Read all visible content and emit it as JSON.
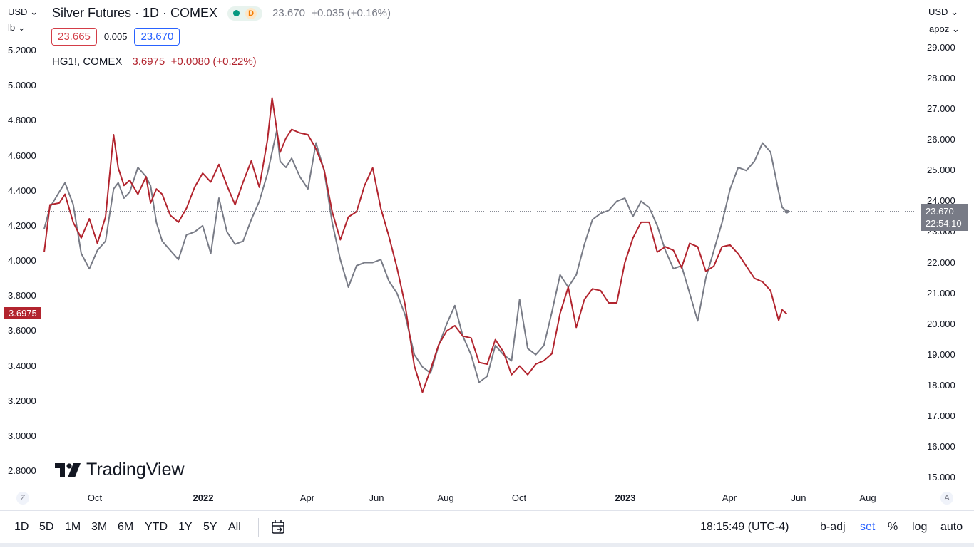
{
  "header": {
    "title": "Silver Futures · 1D · COMEX",
    "badge_letter": "D",
    "quote": "23.670  +0.035 (+0.16%)",
    "bid": "23.665",
    "spread": "0.005",
    "ask": "23.670",
    "compare_symbol": "HG1!, COMEX",
    "compare_quote": "3.6975  +0.0080 (+0.22%)"
  },
  "left_axis": {
    "currency": "USD",
    "unit": "lb",
    "ticks": [
      "5.2000",
      "5.0000",
      "4.8000",
      "4.6000",
      "4.4000",
      "4.2000",
      "4.0000",
      "3.8000",
      "3.6000",
      "3.4000",
      "3.2000",
      "3.0000",
      "2.8000"
    ],
    "current_label": "3.6975"
  },
  "right_axis": {
    "currency": "USD",
    "unit": "apoz",
    "ticks": [
      "29.000",
      "28.000",
      "27.000",
      "26.000",
      "25.000",
      "24.000",
      "23.000",
      "22.000",
      "21.000",
      "20.000",
      "19.000",
      "18.000",
      "17.000",
      "16.000",
      "15.000"
    ],
    "current_price": "23.670",
    "countdown": "22:54:10"
  },
  "x_axis": {
    "labels": [
      "Oct",
      "2022",
      "Apr",
      "Jun",
      "Aug",
      "Oct",
      "2023",
      "Apr",
      "Jun",
      "Aug"
    ],
    "bold": [
      false,
      true,
      false,
      false,
      false,
      false,
      true,
      false,
      false,
      false
    ]
  },
  "watermark": "TradingView",
  "bottom_bar": {
    "ranges": [
      "1D",
      "5D",
      "1M",
      "3M",
      "6M",
      "YTD",
      "1Y",
      "5Y",
      "All"
    ],
    "time": "18:15:49 (UTC-4)",
    "options": [
      "b-adj",
      "set",
      "%",
      "log",
      "auto"
    ],
    "active_option": "set",
    "axis_left_btn": "Z",
    "axis_right_btn": "A"
  },
  "colors": {
    "silver": "#787b86",
    "copper": "#b2242e",
    "accent": "#2962ff"
  },
  "chart_data": {
    "type": "line",
    "x_range": [
      "2021-08-19",
      "2023-09-15"
    ],
    "series": [
      {
        "name": "Silver Futures · 1D · COMEX",
        "axis": "right",
        "x": [
          "2021-08-19",
          "2021-08-24",
          "2021-09-01",
          "2021-09-06",
          "2021-09-13",
          "2021-09-20",
          "2021-09-27",
          "2021-10-04",
          "2021-10-11",
          "2021-10-18",
          "2021-10-22",
          "2021-10-27",
          "2021-11-01",
          "2021-11-08",
          "2021-11-15",
          "2021-11-19",
          "2021-11-24",
          "2021-11-29",
          "2021-12-06",
          "2021-12-13",
          "2021-12-20",
          "2021-12-27",
          "2022-01-03",
          "2022-01-10",
          "2022-01-17",
          "2022-01-24",
          "2022-01-31",
          "2022-02-07",
          "2022-02-14",
          "2022-02-21",
          "2022-02-28",
          "2022-03-04",
          "2022-03-08",
          "2022-03-11",
          "2022-03-16",
          "2022-03-21",
          "2022-03-28",
          "2022-04-04",
          "2022-04-11",
          "2022-04-18",
          "2022-04-25",
          "2022-05-02",
          "2022-05-09",
          "2022-05-16",
          "2022-05-23",
          "2022-05-30",
          "2022-06-06",
          "2022-06-13",
          "2022-06-20",
          "2022-06-27",
          "2022-07-05",
          "2022-07-12",
          "2022-07-19",
          "2022-07-26",
          "2022-08-02",
          "2022-08-09",
          "2022-08-16",
          "2022-08-23",
          "2022-08-30",
          "2022-09-06",
          "2022-09-13",
          "2022-09-20",
          "2022-09-27",
          "2022-10-04",
          "2022-10-11",
          "2022-10-18",
          "2022-10-25",
          "2022-11-01",
          "2022-11-08",
          "2022-11-15",
          "2022-11-22",
          "2022-11-29",
          "2022-12-06",
          "2022-12-13",
          "2022-12-20",
          "2022-12-27",
          "2023-01-03",
          "2023-01-10",
          "2023-01-17",
          "2023-01-24",
          "2023-01-31",
          "2023-02-07",
          "2023-02-14",
          "2023-02-21",
          "2023-02-28",
          "2023-03-07",
          "2023-03-14",
          "2023-03-21",
          "2023-03-28",
          "2023-04-04",
          "2023-04-11",
          "2023-04-18",
          "2023-04-25",
          "2023-05-02",
          "2023-05-09",
          "2023-05-16",
          "2023-05-19",
          "2023-05-23"
        ],
        "y": [
          23.1,
          23.8,
          24.3,
          24.6,
          23.9,
          22.3,
          21.8,
          22.4,
          22.7,
          24.4,
          24.6,
          24.1,
          24.3,
          25.1,
          24.8,
          24.5,
          23.3,
          22.7,
          22.4,
          22.1,
          22.9,
          23.0,
          23.2,
          22.3,
          24.1,
          23.0,
          22.6,
          22.7,
          23.4,
          24.0,
          24.9,
          25.6,
          26.3,
          25.3,
          25.1,
          25.4,
          24.8,
          24.4,
          25.9,
          25.0,
          23.3,
          22.1,
          21.2,
          21.9,
          22.0,
          22.0,
          22.1,
          21.4,
          21.0,
          20.3,
          19.0,
          18.6,
          18.4,
          19.3,
          20.0,
          20.6,
          19.6,
          19.0,
          18.1,
          18.3,
          19.3,
          19.0,
          18.8,
          20.8,
          19.2,
          19.0,
          19.3,
          20.4,
          21.6,
          21.2,
          21.6,
          22.6,
          23.4,
          23.6,
          23.7,
          24.0,
          24.1,
          23.5,
          24.0,
          23.8,
          23.2,
          22.4,
          21.8,
          21.9,
          21.0,
          20.1,
          21.5,
          22.4,
          23.3,
          24.4,
          25.1,
          25.0,
          25.3,
          25.9,
          25.6,
          24.3,
          23.8,
          23.67
        ]
      },
      {
        "name": "HG1!, COMEX",
        "axis": "left",
        "x": [
          "2021-08-19",
          "2021-08-24",
          "2021-09-01",
          "2021-09-06",
          "2021-09-13",
          "2021-09-20",
          "2021-09-27",
          "2021-10-04",
          "2021-10-11",
          "2021-10-18",
          "2021-10-22",
          "2021-10-27",
          "2021-11-01",
          "2021-11-08",
          "2021-11-15",
          "2021-11-19",
          "2021-11-24",
          "2021-11-29",
          "2021-12-06",
          "2021-12-13",
          "2021-12-20",
          "2021-12-27",
          "2022-01-03",
          "2022-01-10",
          "2022-01-17",
          "2022-01-24",
          "2022-01-31",
          "2022-02-07",
          "2022-02-14",
          "2022-02-21",
          "2022-02-28",
          "2022-03-04",
          "2022-03-08",
          "2022-03-11",
          "2022-03-16",
          "2022-03-21",
          "2022-03-28",
          "2022-04-04",
          "2022-04-11",
          "2022-04-18",
          "2022-04-25",
          "2022-05-02",
          "2022-05-09",
          "2022-05-16",
          "2022-05-23",
          "2022-05-30",
          "2022-06-06",
          "2022-06-13",
          "2022-06-20",
          "2022-06-27",
          "2022-07-05",
          "2022-07-12",
          "2022-07-19",
          "2022-07-26",
          "2022-08-02",
          "2022-08-09",
          "2022-08-16",
          "2022-08-23",
          "2022-08-30",
          "2022-09-06",
          "2022-09-13",
          "2022-09-20",
          "2022-09-27",
          "2022-10-04",
          "2022-10-11",
          "2022-10-18",
          "2022-10-25",
          "2022-11-01",
          "2022-11-08",
          "2022-11-15",
          "2022-11-22",
          "2022-11-29",
          "2022-12-06",
          "2022-12-13",
          "2022-12-20",
          "2022-12-27",
          "2023-01-03",
          "2023-01-10",
          "2023-01-17",
          "2023-01-24",
          "2023-01-31",
          "2023-02-07",
          "2023-02-14",
          "2023-02-21",
          "2023-02-28",
          "2023-03-07",
          "2023-03-14",
          "2023-03-21",
          "2023-03-28",
          "2023-04-04",
          "2023-04-11",
          "2023-04-18",
          "2023-04-25",
          "2023-05-02",
          "2023-05-09",
          "2023-05-16",
          "2023-05-19",
          "2023-05-23"
        ],
        "y": [
          4.05,
          4.32,
          4.33,
          4.38,
          4.22,
          4.13,
          4.24,
          4.1,
          4.25,
          4.72,
          4.53,
          4.43,
          4.46,
          4.38,
          4.48,
          4.33,
          4.41,
          4.38,
          4.26,
          4.22,
          4.3,
          4.42,
          4.5,
          4.45,
          4.55,
          4.43,
          4.32,
          4.45,
          4.57,
          4.42,
          4.69,
          4.93,
          4.75,
          4.62,
          4.7,
          4.75,
          4.73,
          4.72,
          4.64,
          4.52,
          4.28,
          4.12,
          4.25,
          4.28,
          4.43,
          4.53,
          4.3,
          4.14,
          3.96,
          3.75,
          3.4,
          3.25,
          3.38,
          3.52,
          3.6,
          3.63,
          3.57,
          3.56,
          3.42,
          3.41,
          3.55,
          3.48,
          3.35,
          3.4,
          3.35,
          3.41,
          3.43,
          3.47,
          3.7,
          3.85,
          3.62,
          3.78,
          3.84,
          3.83,
          3.76,
          3.76,
          3.99,
          4.13,
          4.22,
          4.22,
          4.05,
          4.08,
          4.06,
          3.96,
          4.1,
          4.08,
          3.94,
          3.97,
          4.08,
          4.09,
          4.04,
          3.97,
          3.9,
          3.88,
          3.83,
          3.66,
          3.72,
          3.6975
        ]
      }
    ],
    "left_ylim": [
      2.8,
      5.2
    ],
    "right_ylim": [
      15.0,
      29.0
    ],
    "grid": false,
    "legend": "top-left"
  }
}
